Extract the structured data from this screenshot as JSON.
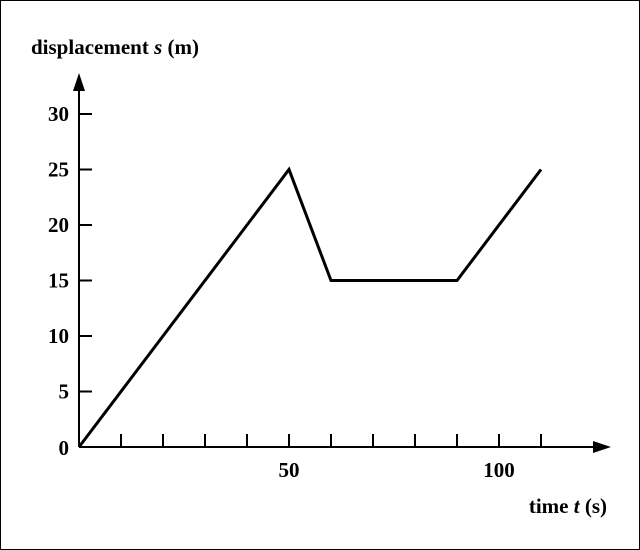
{
  "chart_data": {
    "type": "line",
    "ylabel_parts": {
      "pre": "displacement ",
      "var": "s",
      "post": " (m)"
    },
    "xlabel_parts": {
      "pre": "time ",
      "var": "t",
      "post": " (s)"
    },
    "origin_label": "0",
    "x_tick_step": 10,
    "x_labeled_ticks": [
      {
        "value": 50,
        "label": "50"
      },
      {
        "value": 100,
        "label": "100"
      }
    ],
    "y_ticks": [
      {
        "value": 5,
        "label": "5"
      },
      {
        "value": 10,
        "label": "10"
      },
      {
        "value": 15,
        "label": "15"
      },
      {
        "value": 20,
        "label": "20"
      },
      {
        "value": 25,
        "label": "25"
      },
      {
        "value": 30,
        "label": "30"
      }
    ],
    "xlim": [
      0,
      125
    ],
    "ylim": [
      0,
      33
    ],
    "grid": false,
    "series": [
      {
        "x": [
          0,
          50,
          60,
          90,
          110
        ],
        "y": [
          0,
          25,
          15,
          15,
          25
        ]
      }
    ],
    "colors": {
      "line": "#000000",
      "axes": "#000000"
    }
  }
}
